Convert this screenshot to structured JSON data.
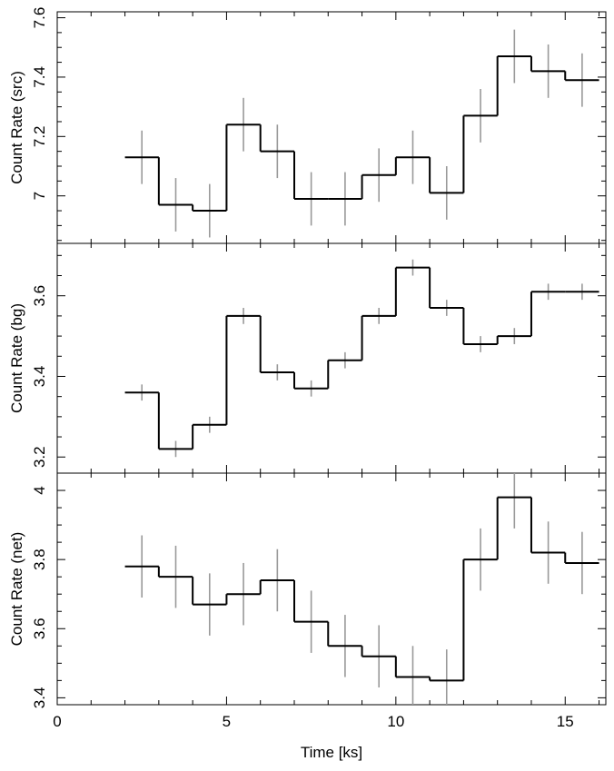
{
  "chart_data": [
    {
      "type": "line",
      "ylabel": "Count Rate (src)",
      "xlim": [
        0,
        16.2
      ],
      "ylim": [
        6.84,
        7.62
      ],
      "yticks": [
        7,
        7.2,
        7.4,
        7.6
      ],
      "ytick_labels": [
        "7",
        "7.2",
        "7.4",
        "7.6"
      ],
      "series": [
        {
          "bin_width": 1,
          "x": [
            2.5,
            3.5,
            4.5,
            5.5,
            6.5,
            7.5,
            8.5,
            9.5,
            10.5,
            11.5,
            12.5,
            13.5,
            14.5,
            15.5
          ],
          "y": [
            7.13,
            6.97,
            6.95,
            7.24,
            7.15,
            6.99,
            6.99,
            7.07,
            7.13,
            7.01,
            7.27,
            7.47,
            7.42,
            7.39
          ],
          "yerr": [
            0.09,
            0.09,
            0.09,
            0.09,
            0.09,
            0.09,
            0.09,
            0.09,
            0.09,
            0.09,
            0.09,
            0.09,
            0.09,
            0.09
          ]
        }
      ]
    },
    {
      "type": "line",
      "ylabel": "Count Rate (bg)",
      "xlim": [
        0,
        16.2
      ],
      "ylim": [
        3.16,
        3.73
      ],
      "yticks": [
        3.2,
        3.4,
        3.6
      ],
      "ytick_labels": [
        "3.2",
        "3.4",
        "3.6"
      ],
      "series": [
        {
          "bin_width": 1,
          "x": [
            2.5,
            3.5,
            4.5,
            5.5,
            6.5,
            7.5,
            8.5,
            9.5,
            10.5,
            11.5,
            12.5,
            13.5,
            14.5,
            15.5
          ],
          "y": [
            3.36,
            3.22,
            3.28,
            3.55,
            3.41,
            3.37,
            3.44,
            3.55,
            3.67,
            3.57,
            3.48,
            3.5,
            3.61,
            3.61
          ],
          "yerr": [
            0.02,
            0.02,
            0.02,
            0.02,
            0.02,
            0.02,
            0.02,
            0.02,
            0.02,
            0.02,
            0.02,
            0.02,
            0.02,
            0.02
          ]
        }
      ]
    },
    {
      "type": "line",
      "ylabel": "Count Rate (net)",
      "xlabel": "Time [ks]",
      "xlim": [
        0,
        16.2
      ],
      "ylim": [
        3.38,
        4.05
      ],
      "yticks": [
        3.4,
        3.6,
        3.8,
        4
      ],
      "ytick_labels": [
        "3.4",
        "3.6",
        "3.8",
        "4"
      ],
      "xticks": [
        0,
        5,
        10,
        15
      ],
      "xtick_labels": [
        "0",
        "5",
        "10",
        "15"
      ],
      "series": [
        {
          "bin_width": 1,
          "x": [
            2.5,
            3.5,
            4.5,
            5.5,
            6.5,
            7.5,
            8.5,
            9.5,
            10.5,
            11.5,
            12.5,
            13.5,
            14.5,
            15.5
          ],
          "y": [
            3.78,
            3.75,
            3.67,
            3.7,
            3.74,
            3.62,
            3.55,
            3.52,
            3.46,
            3.45,
            3.8,
            3.98,
            3.82,
            3.79
          ],
          "yerr": [
            0.09,
            0.09,
            0.09,
            0.09,
            0.09,
            0.09,
            0.09,
            0.09,
            0.09,
            0.09,
            0.09,
            0.09,
            0.09,
            0.09
          ]
        }
      ]
    }
  ],
  "colors": {
    "step_line": "#000000",
    "error_bar": "#999999",
    "frame": "#000000",
    "background": "#ffffff"
  }
}
